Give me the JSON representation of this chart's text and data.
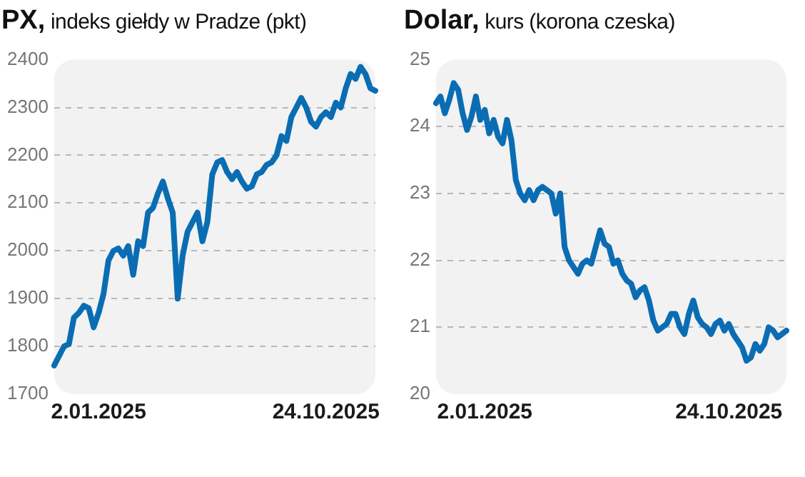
{
  "chart_data": [
    {
      "type": "line",
      "title": "PX, indeks giełdy w Pradze (pkt)",
      "grid": "y",
      "ylim": [
        1700,
        2400
      ],
      "yticks": [
        1700,
        1800,
        1900,
        2000,
        2100,
        2200,
        2300,
        2400
      ],
      "categories": [
        null,
        null,
        null,
        null,
        null,
        null,
        null,
        null,
        null,
        "2.01.2025",
        null,
        null,
        null,
        null,
        null,
        null,
        null,
        null,
        null,
        null,
        null,
        null,
        null,
        null,
        null,
        null,
        null,
        null,
        null,
        null,
        null,
        null,
        null,
        null,
        null,
        null,
        null,
        null,
        null,
        null,
        null,
        null,
        null,
        null,
        null,
        null,
        null,
        null,
        null,
        null,
        null,
        null,
        null,
        null,
        null,
        "24.10.2025",
        null,
        null,
        null,
        null,
        null,
        null,
        null,
        null,
        null,
        null
      ],
      "series": [
        {
          "color": "#0a6db3",
          "values": [
            1760,
            1780,
            1800,
            1805,
            1860,
            1870,
            1885,
            1880,
            1840,
            1870,
            1910,
            1980,
            2000,
            2005,
            1990,
            2010,
            1950,
            2020,
            2010,
            2080,
            2090,
            2120,
            2145,
            2110,
            2080,
            1900,
            1990,
            2040,
            2060,
            2080,
            2020,
            2060,
            2160,
            2185,
            2190,
            2165,
            2150,
            2165,
            2145,
            2130,
            2135,
            2160,
            2165,
            2180,
            2185,
            2200,
            2240,
            2230,
            2280,
            2300,
            2320,
            2300,
            2270,
            2260,
            2280,
            2290,
            2280,
            2310,
            2300,
            2340,
            2370,
            2360,
            2385,
            2370,
            2340,
            2335
          ]
        }
      ]
    },
    {
      "type": "line",
      "title": "Dolar, kurs (korona czeska)",
      "grid": "y",
      "ylim": [
        20,
        25
      ],
      "yticks": [
        20,
        21,
        22,
        23,
        24,
        25
      ],
      "categories": [
        null,
        null,
        null,
        null,
        null,
        null,
        null,
        null,
        null,
        null,
        null,
        "2.01.2025",
        null,
        null,
        null,
        null,
        null,
        null,
        null,
        null,
        null,
        null,
        null,
        null,
        null,
        null,
        null,
        null,
        null,
        null,
        null,
        null,
        null,
        null,
        null,
        null,
        null,
        null,
        null,
        null,
        null,
        null,
        null,
        null,
        null,
        null,
        null,
        null,
        null,
        null,
        null,
        null,
        null,
        null,
        null,
        null,
        null,
        null,
        null,
        null,
        null,
        null,
        null,
        null,
        null,
        null,
        "24.10.2025",
        null,
        null,
        null,
        null,
        null,
        null,
        null,
        null,
        null,
        null,
        null,
        null,
        null
      ],
      "series": [
        {
          "color": "#0a6db3",
          "values": [
            24.35,
            24.45,
            24.2,
            24.4,
            24.65,
            24.55,
            24.2,
            23.95,
            24.15,
            24.45,
            24.1,
            24.25,
            23.9,
            24.1,
            23.85,
            23.75,
            24.1,
            23.8,
            23.2,
            23.0,
            22.9,
            23.05,
            22.9,
            23.05,
            23.1,
            23.05,
            23.0,
            22.7,
            23.0,
            22.2,
            22.0,
            21.9,
            21.8,
            21.95,
            22.0,
            21.95,
            22.2,
            22.45,
            22.25,
            22.2,
            21.95,
            22.0,
            21.8,
            21.7,
            21.65,
            21.45,
            21.55,
            21.6,
            21.4,
            21.1,
            20.95,
            21.0,
            21.05,
            21.2,
            21.2,
            21.0,
            20.9,
            21.2,
            21.4,
            21.15,
            21.05,
            21.0,
            20.9,
            21.05,
            21.1,
            20.95,
            21.05,
            20.9,
            20.8,
            20.7,
            20.5,
            20.55,
            20.75,
            20.65,
            20.75,
            21.0,
            20.95,
            20.85,
            20.9,
            20.95
          ]
        }
      ]
    }
  ]
}
